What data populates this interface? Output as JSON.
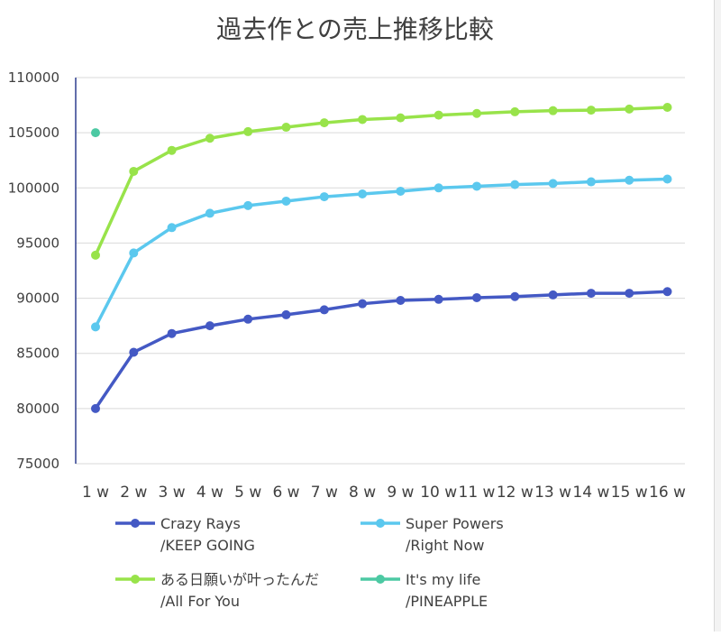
{
  "chart_data": {
    "type": "line",
    "title": "過去作との売上推移比較",
    "categories": [
      "1 w",
      "2 w",
      "3 w",
      "4 w",
      "5 w",
      "6 w",
      "7 w",
      "8 w",
      "9 w",
      "10 w",
      "11 w",
      "12 w",
      "13 w",
      "14 w",
      "15 w",
      "16 w"
    ],
    "ylim": [
      75000,
      110000
    ],
    "yticks": [
      "75000",
      "80000",
      "85000",
      "90000",
      "95000",
      "100000",
      "105000",
      "110000"
    ],
    "grid": true,
    "legend": "bottom",
    "series": [
      {
        "name_line1": "Crazy Rays",
        "name_line2": "/KEEP GOING",
        "color": "#4459c4",
        "values": [
          80000,
          85100,
          86800,
          87500,
          88100,
          88500,
          88950,
          89500,
          89800,
          89900,
          90050,
          90150,
          90300,
          90450,
          90450,
          90600
        ]
      },
      {
        "name_line1": "Super Powers",
        "name_line2": "/Right Now",
        "color": "#5bc8ee",
        "values": [
          87400,
          94100,
          96400,
          97700,
          98400,
          98800,
          99200,
          99450,
          99700,
          100000,
          100150,
          100300,
          100400,
          100550,
          100700,
          100800
        ]
      },
      {
        "name_line1": "ある日願いが叶ったんだ",
        "name_line2": "/All For You",
        "color": "#98e34a",
        "values": [
          93900,
          101500,
          103400,
          104500,
          105100,
          105500,
          105900,
          106200,
          106350,
          106600,
          106750,
          106900,
          107000,
          107050,
          107150,
          107300
        ]
      },
      {
        "name_line1": "It's my life",
        "name_line2": "/PINEAPPLE",
        "color": "#4cc9a3",
        "values": [
          105000,
          null,
          null,
          null,
          null,
          null,
          null,
          null,
          null,
          null,
          null,
          null,
          null,
          null,
          null,
          null
        ]
      }
    ]
  }
}
